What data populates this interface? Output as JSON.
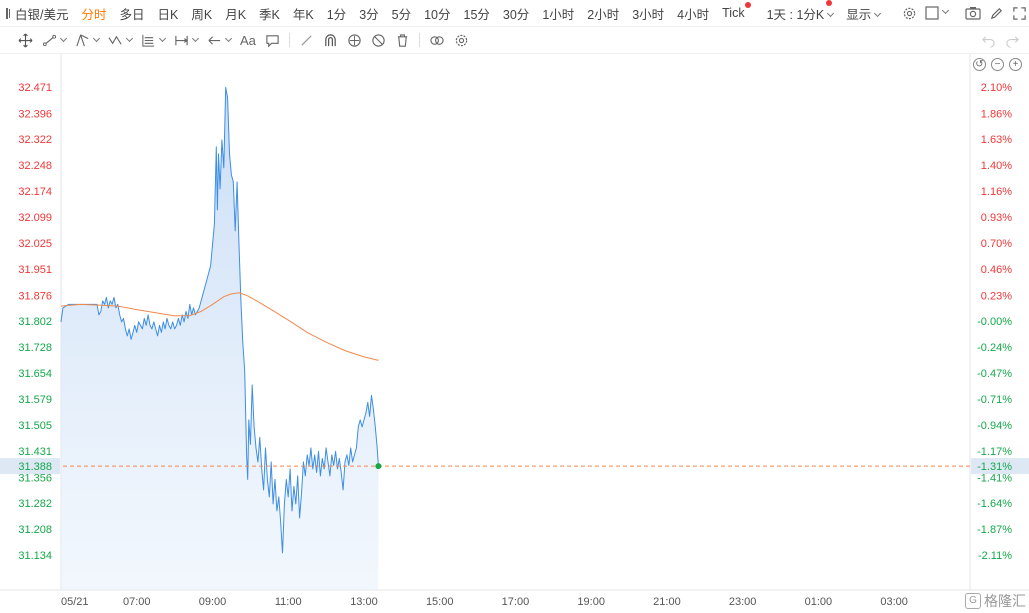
{
  "toolbar": {
    "symbol": "白银/美元",
    "periods": [
      "分时",
      "多日",
      "日K",
      "周K",
      "月K",
      "季K",
      "年K",
      "1分",
      "3分",
      "5分",
      "10分",
      "15分",
      "30分",
      "1小时",
      "2小时",
      "3小时",
      "4小时",
      "Tick"
    ],
    "active_period": "分时",
    "interval_select": "1天 : 1分K",
    "display_menu": "显示"
  },
  "drawing_tools": {
    "text_tool": "Aa"
  },
  "colors": {
    "up": "#f03737",
    "down": "#15a84a",
    "price_line": "#3d8ee6",
    "avg_line": "#f0894e",
    "current_line": "#f0894e",
    "axis_text": "#555555",
    "current_label_bg": "#dde8f4"
  },
  "watermark": {
    "text": "格隆汇"
  },
  "chart_data": {
    "type": "area",
    "title": "",
    "xlabel": "",
    "ylabel": "",
    "ylim": [
      31.1,
      32.5
    ],
    "reference_price": 31.802,
    "y_ticks": [
      32.471,
      32.396,
      32.322,
      32.248,
      32.174,
      32.099,
      32.025,
      31.951,
      31.876,
      31.802,
      31.728,
      31.654,
      31.579,
      31.505,
      31.431,
      31.356,
      31.282,
      31.208,
      31.134
    ],
    "pct_ticks": [
      "2.10%",
      "1.86%",
      "1.63%",
      "1.40%",
      "1.16%",
      "0.93%",
      "0.70%",
      "0.46%",
      "0.23%",
      "-0.00%",
      "-0.24%",
      "-0.47%",
      "-0.71%",
      "-0.94%",
      "-1.17%",
      "-1.41%",
      "-1.64%",
      "-1.87%",
      "-2.11%"
    ],
    "x_labels": [
      "05/21",
      "07:00",
      "09:00",
      "11:00",
      "13:00",
      "15:00",
      "17:00",
      "19:00",
      "21:00",
      "23:00",
      "01:00",
      "03:00"
    ],
    "x_label_hours": [
      0,
      2,
      4,
      6,
      8,
      10,
      12,
      14,
      16,
      18,
      20,
      22
    ],
    "x_range_hours": [
      0,
      24
    ],
    "current": {
      "price": "31.388",
      "pct": "-1.31%",
      "value": 31.388
    },
    "series": [
      {
        "points": [
          [
            0.0,
            31.8
          ],
          [
            0.05,
            31.84
          ],
          [
            0.2,
            31.85
          ],
          [
            0.4,
            31.85
          ],
          [
            0.6,
            31.85
          ],
          [
            0.8,
            31.85
          ],
          [
            0.95,
            31.85
          ],
          [
            1.0,
            31.82
          ],
          [
            1.05,
            31.83
          ],
          [
            1.1,
            31.86
          ],
          [
            1.15,
            31.85
          ],
          [
            1.2,
            31.87
          ],
          [
            1.25,
            31.84
          ],
          [
            1.3,
            31.86
          ],
          [
            1.35,
            31.85
          ],
          [
            1.4,
            31.87
          ],
          [
            1.45,
            31.84
          ],
          [
            1.5,
            31.85
          ],
          [
            1.55,
            31.82
          ],
          [
            1.6,
            31.8
          ],
          [
            1.65,
            31.81
          ],
          [
            1.7,
            31.78
          ],
          [
            1.75,
            31.76
          ],
          [
            1.8,
            31.78
          ],
          [
            1.85,
            31.75
          ],
          [
            1.9,
            31.77
          ],
          [
            1.95,
            31.79
          ],
          [
            2.0,
            31.77
          ],
          [
            2.05,
            31.8
          ],
          [
            2.1,
            31.79
          ],
          [
            2.15,
            31.78
          ],
          [
            2.2,
            31.81
          ],
          [
            2.25,
            31.79
          ],
          [
            2.3,
            31.82
          ],
          [
            2.35,
            31.79
          ],
          [
            2.4,
            31.78
          ],
          [
            2.45,
            31.8
          ],
          [
            2.5,
            31.78
          ],
          [
            2.55,
            31.76
          ],
          [
            2.6,
            31.79
          ],
          [
            2.65,
            31.77
          ],
          [
            2.7,
            31.8
          ],
          [
            2.75,
            31.78
          ],
          [
            2.8,
            31.81
          ],
          [
            2.85,
            31.79
          ],
          [
            2.9,
            31.78
          ],
          [
            2.95,
            31.8
          ],
          [
            3.0,
            31.78
          ],
          [
            3.05,
            31.79
          ],
          [
            3.1,
            31.81
          ],
          [
            3.15,
            31.79
          ],
          [
            3.2,
            31.82
          ],
          [
            3.25,
            31.8
          ],
          [
            3.3,
            31.83
          ],
          [
            3.35,
            31.81
          ],
          [
            3.4,
            31.85
          ],
          [
            3.45,
            31.82
          ],
          [
            3.5,
            31.84
          ],
          [
            3.55,
            31.82
          ],
          [
            3.6,
            31.83
          ],
          [
            3.65,
            31.84
          ],
          [
            3.7,
            31.86
          ],
          [
            3.75,
            31.88
          ],
          [
            3.8,
            31.9
          ],
          [
            3.85,
            31.92
          ],
          [
            3.9,
            31.94
          ],
          [
            3.95,
            31.96
          ],
          [
            4.0,
            32.02
          ],
          [
            4.05,
            32.08
          ],
          [
            4.1,
            32.3
          ],
          [
            4.13,
            32.12
          ],
          [
            4.16,
            32.28
          ],
          [
            4.2,
            32.18
          ],
          [
            4.25,
            32.32
          ],
          [
            4.3,
            32.24
          ],
          [
            4.35,
            32.47
          ],
          [
            4.4,
            32.44
          ],
          [
            4.45,
            32.28
          ],
          [
            4.5,
            32.22
          ],
          [
            4.55,
            32.2
          ],
          [
            4.6,
            32.06
          ],
          [
            4.65,
            32.2
          ],
          [
            4.7,
            32.02
          ],
          [
            4.75,
            31.86
          ],
          [
            4.8,
            31.74
          ],
          [
            4.85,
            31.66
          ],
          [
            4.9,
            31.42
          ],
          [
            4.93,
            31.35
          ],
          [
            4.96,
            31.52
          ],
          [
            5.0,
            31.45
          ],
          [
            5.05,
            31.62
          ],
          [
            5.1,
            31.5
          ],
          [
            5.15,
            31.44
          ],
          [
            5.2,
            31.4
          ],
          [
            5.25,
            31.47
          ],
          [
            5.3,
            31.38
          ],
          [
            5.35,
            31.32
          ],
          [
            5.4,
            31.44
          ],
          [
            5.45,
            31.35
          ],
          [
            5.5,
            31.3
          ],
          [
            5.55,
            31.4
          ],
          [
            5.6,
            31.28
          ],
          [
            5.65,
            31.35
          ],
          [
            5.7,
            31.26
          ],
          [
            5.75,
            31.3
          ],
          [
            5.8,
            31.23
          ],
          [
            5.85,
            31.14
          ],
          [
            5.9,
            31.28
          ],
          [
            5.95,
            31.35
          ],
          [
            6.0,
            31.3
          ],
          [
            6.05,
            31.38
          ],
          [
            6.1,
            31.26
          ],
          [
            6.15,
            31.33
          ],
          [
            6.2,
            31.28
          ],
          [
            6.25,
            31.36
          ],
          [
            6.3,
            31.24
          ],
          [
            6.35,
            31.31
          ],
          [
            6.4,
            31.4
          ],
          [
            6.45,
            31.36
          ],
          [
            6.5,
            31.42
          ],
          [
            6.55,
            31.39
          ],
          [
            6.6,
            31.44
          ],
          [
            6.65,
            31.38
          ],
          [
            6.7,
            31.42
          ],
          [
            6.75,
            31.37
          ],
          [
            6.8,
            31.43
          ],
          [
            6.85,
            31.36
          ],
          [
            6.9,
            31.41
          ],
          [
            6.95,
            31.38
          ],
          [
            7.0,
            31.44
          ],
          [
            7.05,
            31.4
          ],
          [
            7.1,
            31.36
          ],
          [
            7.15,
            31.42
          ],
          [
            7.2,
            31.39
          ],
          [
            7.25,
            31.43
          ],
          [
            7.3,
            31.38
          ],
          [
            7.35,
            31.41
          ],
          [
            7.4,
            31.37
          ],
          [
            7.45,
            31.32
          ],
          [
            7.5,
            31.4
          ],
          [
            7.55,
            31.42
          ],
          [
            7.6,
            31.39
          ],
          [
            7.65,
            31.44
          ],
          [
            7.7,
            31.4
          ],
          [
            7.75,
            31.42
          ],
          [
            7.8,
            31.44
          ],
          [
            7.85,
            31.5
          ],
          [
            7.9,
            31.52
          ],
          [
            7.95,
            31.5
          ],
          [
            8.0,
            31.52
          ],
          [
            8.05,
            31.54
          ],
          [
            8.1,
            31.57
          ],
          [
            8.15,
            31.53
          ],
          [
            8.2,
            31.59
          ],
          [
            8.25,
            31.55
          ],
          [
            8.3,
            31.5
          ],
          [
            8.35,
            31.44
          ],
          [
            8.38,
            31.388
          ]
        ]
      },
      {
        "points": [
          [
            0.0,
            31.845
          ],
          [
            0.5,
            31.85
          ],
          [
            1.0,
            31.848
          ],
          [
            1.5,
            31.845
          ],
          [
            2.0,
            31.835
          ],
          [
            2.5,
            31.826
          ],
          [
            3.0,
            31.817
          ],
          [
            3.4,
            31.818
          ],
          [
            3.7,
            31.83
          ],
          [
            4.0,
            31.85
          ],
          [
            4.3,
            31.872
          ],
          [
            4.5,
            31.88
          ],
          [
            4.7,
            31.883
          ],
          [
            4.9,
            31.876
          ],
          [
            5.2,
            31.858
          ],
          [
            5.6,
            31.832
          ],
          [
            6.0,
            31.805
          ],
          [
            6.5,
            31.77
          ],
          [
            7.0,
            31.742
          ],
          [
            7.5,
            31.718
          ],
          [
            8.0,
            31.7
          ],
          [
            8.38,
            31.69
          ]
        ]
      }
    ],
    "grid": false,
    "legend": "none"
  }
}
